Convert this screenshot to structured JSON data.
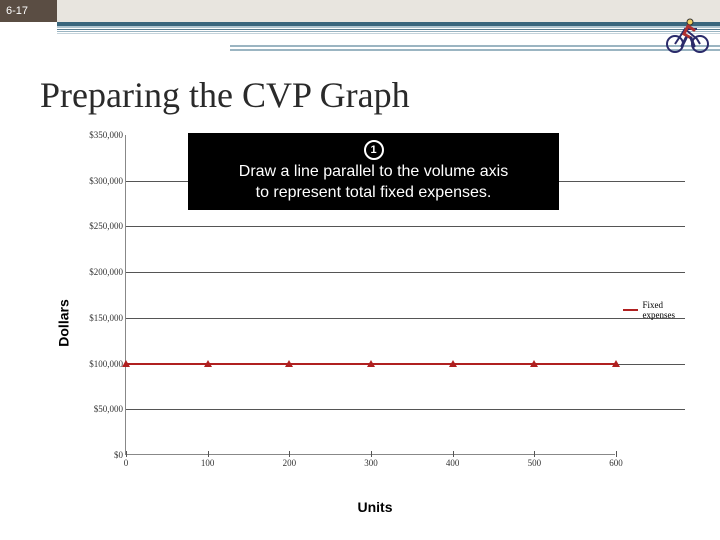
{
  "page_number": "6-17",
  "title": "Preparing the CVP Graph",
  "callout": {
    "step": "1",
    "line1": "Draw a line parallel to the volume axis",
    "line2": "to represent total fixed expenses.",
    "background": "#000000",
    "text_color": "#ffffff"
  },
  "chart": {
    "type": "line",
    "y_axis_title": "Dollars",
    "x_axis_title": "Units",
    "ylim": [
      0,
      350000
    ],
    "xlim": [
      0,
      600
    ],
    "y_ticks": [
      {
        "v": 0,
        "label": "$0"
      },
      {
        "v": 50000,
        "label": "$50,000"
      },
      {
        "v": 100000,
        "label": "$100,000"
      },
      {
        "v": 150000,
        "label": "$150,000"
      },
      {
        "v": 200000,
        "label": "$200,000"
      },
      {
        "v": 250000,
        "label": "$250,000"
      },
      {
        "v": 300000,
        "label": "$300,000"
      },
      {
        "v": 350000,
        "label": "$350,000"
      }
    ],
    "x_ticks": [
      {
        "v": 0,
        "label": "0"
      },
      {
        "v": 100,
        "label": "100"
      },
      {
        "v": 200,
        "label": "200"
      },
      {
        "v": 300,
        "label": "300"
      },
      {
        "v": 400,
        "label": "400"
      },
      {
        "v": 500,
        "label": "500"
      },
      {
        "v": 600,
        "label": "600"
      }
    ],
    "series": [
      {
        "name": "Fixed expenses",
        "color": "#b02020",
        "line_width": 2,
        "marker": "triangle",
        "marker_color": "#b02020",
        "points": [
          {
            "x": 0,
            "y": 100000
          },
          {
            "x": 100,
            "y": 100000
          },
          {
            "x": 200,
            "y": 100000
          },
          {
            "x": 300,
            "y": 100000
          },
          {
            "x": 400,
            "y": 100000
          },
          {
            "x": 500,
            "y": 100000
          },
          {
            "x": 600,
            "y": 100000
          }
        ]
      }
    ],
    "legend_position": "right",
    "background_color": "#ffffff",
    "grid_color": "#555555",
    "axis_color": "#888888",
    "label_fontsize": 9,
    "axis_title_fontsize": 14
  },
  "colors": {
    "header_brown": "#5a4d43",
    "header_light": "#e8e5df",
    "accent_primary": "#3a667d"
  }
}
